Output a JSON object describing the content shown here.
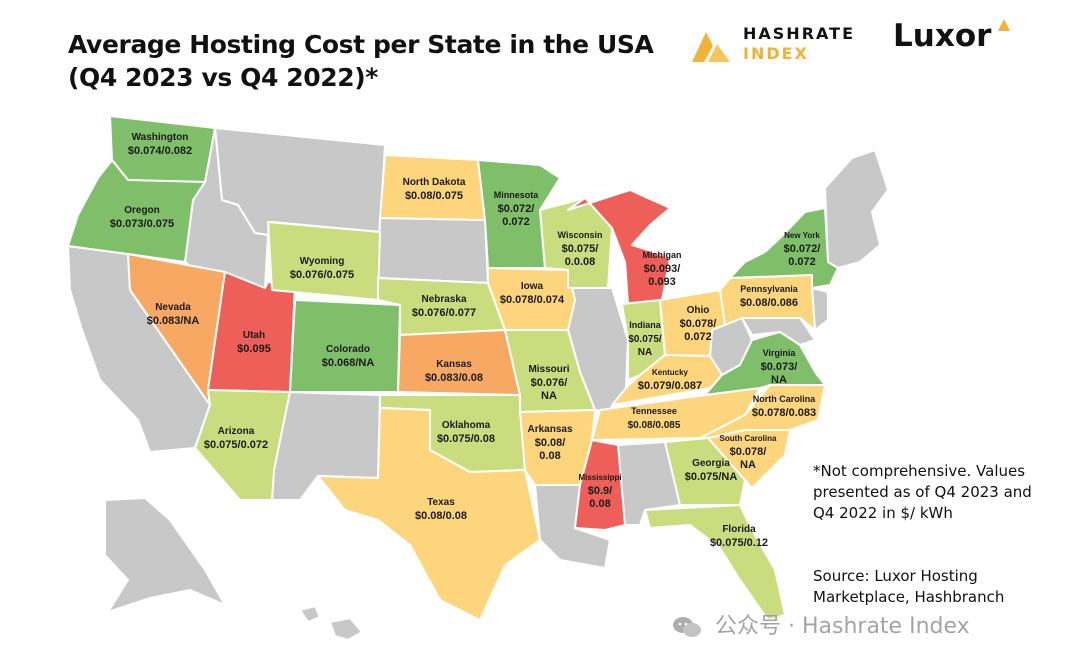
{
  "title": {
    "line1": "Average Hosting Cost per State in the USA",
    "line2": "(Q4 2023 vs Q4 2022)*"
  },
  "logos": {
    "hashrate_line1": "HASHRATE",
    "hashrate_line2": "INDEX",
    "luxor": "Luxor"
  },
  "colors": {
    "no_data": "#c8c8c8",
    "green": "#7fbf6a",
    "light_green": "#c9dd7e",
    "yellow": "#fdd57c",
    "orange": "#f7a863",
    "red": "#ee5f59",
    "border": "#ffffff"
  },
  "states": [
    {
      "name": "Washington",
      "value": "$0.074/0.082",
      "color": "green"
    },
    {
      "name": "Oregon",
      "value": "$0.073/0.075",
      "color": "green"
    },
    {
      "name": "Nevada",
      "value": "$0.083/NA",
      "color": "orange"
    },
    {
      "name": "Utah",
      "value": "$0.095",
      "color": "red"
    },
    {
      "name": "Arizona",
      "value": "$0.075/0.072",
      "color": "light_green"
    },
    {
      "name": "Wyoming",
      "value": "$0.076/0.075",
      "color": "light_green"
    },
    {
      "name": "Colorado",
      "value": "$0.068/NA",
      "color": "green"
    },
    {
      "name": "North Dakota",
      "value": "$0.08/0.075",
      "color": "yellow"
    },
    {
      "name": "Nebraska",
      "value": "$0.076/0.077",
      "color": "light_green"
    },
    {
      "name": "Kansas",
      "value": "$0.083/0.08",
      "color": "orange"
    },
    {
      "name": "Oklahoma",
      "value": "$0.075/0.08",
      "color": "light_green"
    },
    {
      "name": "Texas",
      "value": "$0.08/0.08",
      "color": "yellow"
    },
    {
      "name": "Minnesota",
      "value": "$0.072/ 0.072",
      "color": "green"
    },
    {
      "name": "Iowa",
      "value": "$0.078/0.074",
      "color": "yellow"
    },
    {
      "name": "Missouri",
      "value": "$0.076/ NA",
      "color": "light_green"
    },
    {
      "name": "Arkansas",
      "value": "$0.08/ 0.08",
      "color": "yellow"
    },
    {
      "name": "Wisconsin",
      "value": "$0.075/ 0.0.08",
      "color": "light_green"
    },
    {
      "name": "Michigan",
      "value": "$0.093/ 0.093",
      "color": "red"
    },
    {
      "name": "Indiana",
      "value": "$0.075/ NA",
      "color": "light_green"
    },
    {
      "name": "Ohio",
      "value": "$0.078/ 0.072",
      "color": "yellow"
    },
    {
      "name": "Kentucky",
      "value": "$0.079/0.087",
      "color": "yellow"
    },
    {
      "name": "Tennessee",
      "value": "$0.08/0.085",
      "color": "yellow"
    },
    {
      "name": "Mississippi",
      "value": "$0.9/ 0.08",
      "color": "red"
    },
    {
      "name": "Georgia",
      "value": "$0.075/NA",
      "color": "light_green"
    },
    {
      "name": "Florida",
      "value": "$0.075/0.12",
      "color": "light_green"
    },
    {
      "name": "South Carolina",
      "value": "$0.078/ NA",
      "color": "yellow"
    },
    {
      "name": "North Carolina",
      "value": "$0.078/0.083",
      "color": "yellow"
    },
    {
      "name": "Virginia",
      "value": "$0.073/ NA",
      "color": "green"
    },
    {
      "name": "Pennsylvania",
      "value": "$0.08/0.086",
      "color": "yellow"
    },
    {
      "name": "New York",
      "value": "$0.072/ 0.072",
      "color": "green"
    }
  ],
  "note": "*Not comprehensive. Values presented as of Q4 2023 and Q4 2022 in $/ kWh",
  "source": "Source: Luxor Hosting Marketplace, Hashbranch",
  "watermark": "公众号 · Hashrate Index"
}
